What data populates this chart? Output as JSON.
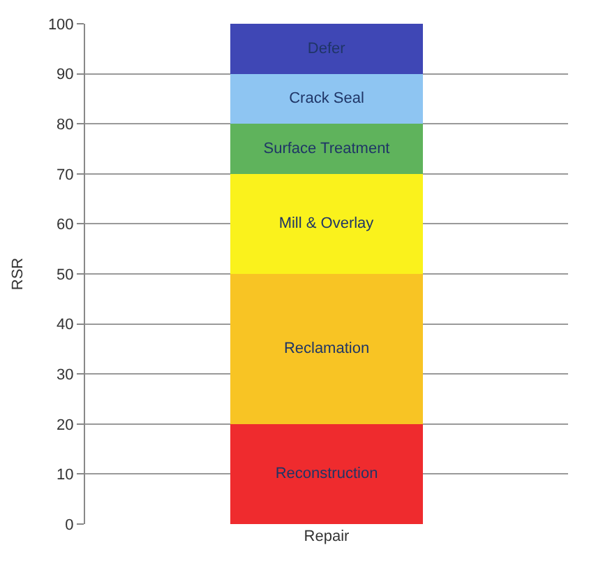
{
  "chart_data": {
    "type": "bar",
    "stacked": true,
    "ylabel": "RSR",
    "categories": [
      "Repair"
    ],
    "series": [
      {
        "name": "Reconstruction",
        "color": "#ef2b2e",
        "values": [
          20
        ]
      },
      {
        "name": "Reclamation",
        "color": "#f8c424",
        "values": [
          30
        ]
      },
      {
        "name": "Mill & Overlay",
        "color": "#faf21c",
        "values": [
          20
        ]
      },
      {
        "name": "Surface Treatment",
        "color": "#5fb35c",
        "values": [
          10
        ]
      },
      {
        "name": "Crack Seal",
        "color": "#8ec5f2",
        "values": [
          10
        ]
      },
      {
        "name": "Defer",
        "color": "#3f47b5",
        "values": [
          10
        ]
      }
    ],
    "ylim": [
      0,
      100
    ],
    "yticks": [
      0,
      10,
      20,
      30,
      40,
      50,
      60,
      70,
      80,
      90,
      100
    ],
    "grid": "y",
    "legend": false
  }
}
